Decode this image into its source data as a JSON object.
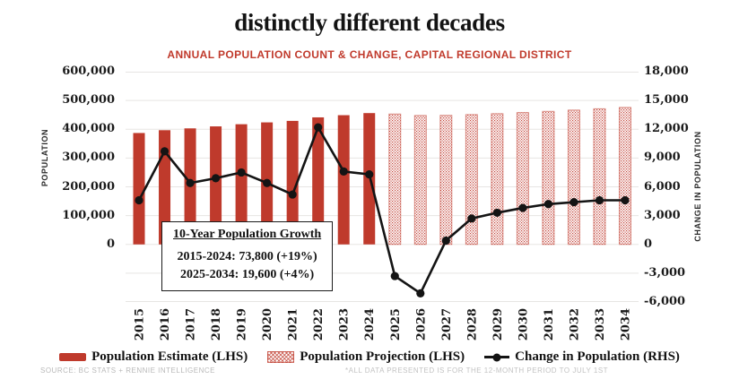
{
  "header": {
    "title": "distinctly different decades",
    "subtitle": "ANNUAL POPULATION COUNT & CHANGE, CAPITAL REGIONAL DISTRICT"
  },
  "chart_data": {
    "type": "bar",
    "combo": "bar+line, dual axis",
    "title": "distinctly different decades",
    "subtitle": "ANNUAL POPULATION COUNT & CHANGE, CAPITAL REGIONAL DISTRICT",
    "grid": "horizontal gridlines on",
    "legend_position": "bottom center",
    "categories": [
      "2015",
      "2016",
      "2017",
      "2018",
      "2019",
      "2020",
      "2021",
      "2022",
      "2023",
      "2024",
      "2025",
      "2026",
      "2027",
      "2028",
      "2029",
      "2030",
      "2031",
      "2032",
      "2033",
      "2034"
    ],
    "series": [
      {
        "name": "Population Estimate (LHS)",
        "type": "bar",
        "axis": "left",
        "pattern": "solid",
        "values": [
          387000,
          396700,
          403100,
          410000,
          417500,
          423900,
          429100,
          441300,
          448900,
          456200,
          null,
          null,
          null,
          null,
          null,
          null,
          null,
          null,
          null,
          null
        ]
      },
      {
        "name": "Population Projection (LHS)",
        "type": "bar",
        "axis": "left",
        "pattern": "hatched",
        "values": [
          null,
          null,
          null,
          null,
          null,
          null,
          null,
          null,
          null,
          null,
          452900,
          447800,
          448200,
          450900,
          454200,
          458000,
          462200,
          466600,
          471200,
          475800
        ]
      },
      {
        "name": "Change in Population (RHS)",
        "type": "line",
        "axis": "right",
        "values": [
          4600,
          9700,
          6400,
          6900,
          7500,
          6400,
          5200,
          12200,
          7600,
          7300,
          -3300,
          -5100,
          400,
          2700,
          3300,
          3800,
          4200,
          4400,
          4600,
          4600
        ]
      }
    ],
    "left_axis": {
      "label": "POPULATION",
      "min": 0,
      "max": 600000,
      "tick_interval": 100000,
      "ticks": [
        {
          "value": 600000,
          "label": "600,000"
        },
        {
          "value": 500000,
          "label": "500,000"
        },
        {
          "value": 400000,
          "label": "400,000"
        },
        {
          "value": 300000,
          "label": "300,000"
        },
        {
          "value": 200000,
          "label": "200,000"
        },
        {
          "value": 100000,
          "label": "100,000"
        },
        {
          "value": 0,
          "label": "0"
        }
      ]
    },
    "right_axis": {
      "label": "CHANGE IN POPULATION",
      "min": -6000,
      "max": 18000,
      "tick_interval": 3000,
      "ticks": [
        {
          "value": 18000,
          "label": "18,000"
        },
        {
          "value": 15000,
          "label": "15,000"
        },
        {
          "value": 12000,
          "label": "12,000"
        },
        {
          "value": 9000,
          "label": "9,000"
        },
        {
          "value": 6000,
          "label": "6,000"
        },
        {
          "value": 3000,
          "label": "3,000"
        },
        {
          "value": 0,
          "label": "0"
        },
        {
          "value": -3000,
          "label": "-3,000"
        },
        {
          "value": -6000,
          "label": "-6,000"
        }
      ]
    },
    "annotation": {
      "title": "10-Year Population Growth",
      "line1": "2015-2024: 73,800 (+19%)",
      "line2": "2025-2034: 19,600 (+4%)"
    },
    "colors": {
      "bar_solid": "#bf3a2c",
      "hatch_dot": "#c4473c",
      "hatch_edge": "rgba(191,58,44,0.55)",
      "line": "#141414",
      "grid": "#e7e5e3",
      "accent_red": "#c0392b"
    }
  },
  "footer": {
    "source": "SOURCE: BC STATS + RENNIE INTELLIGENCE",
    "note": "*ALL DATA PRESENTED IS FOR THE 12-MONTH PERIOD TO JULY 1ST"
  }
}
